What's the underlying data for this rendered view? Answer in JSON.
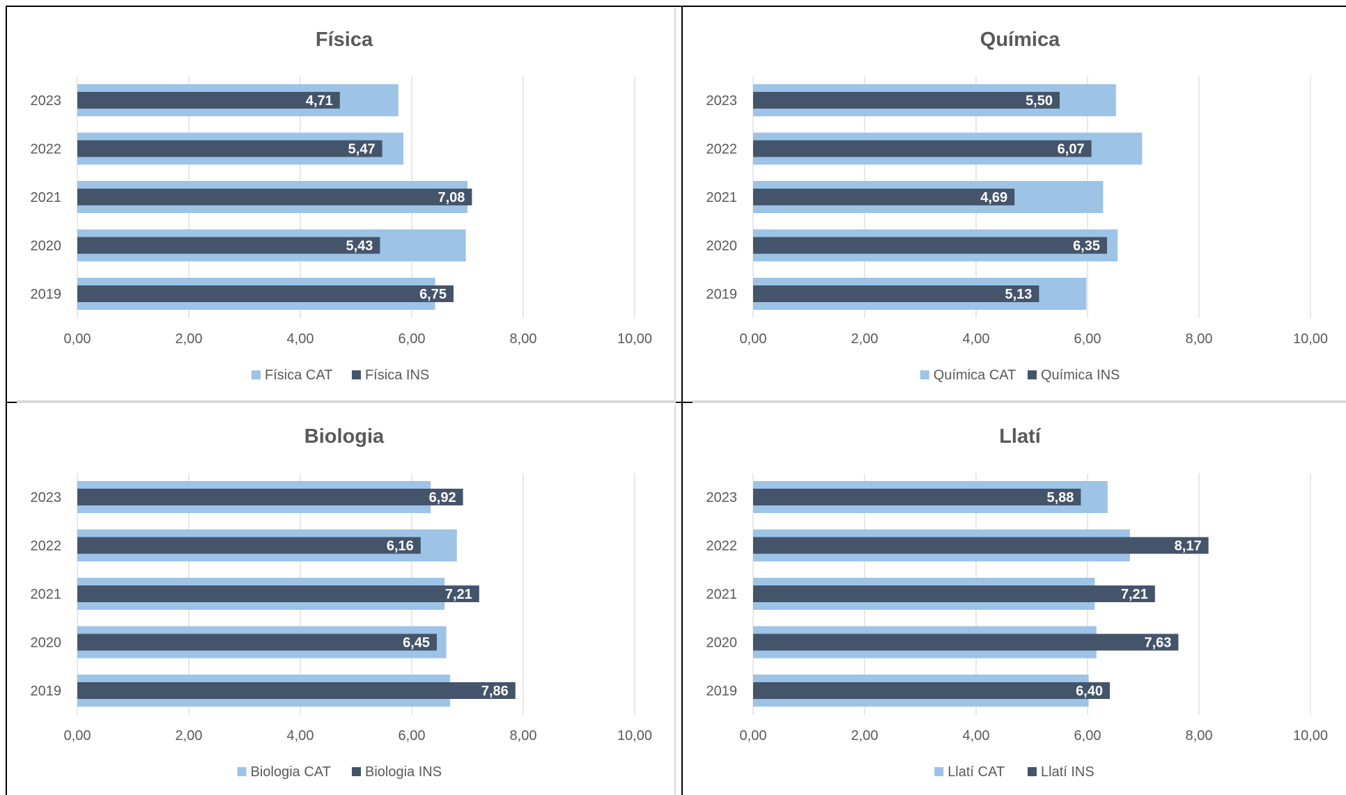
{
  "colors": {
    "cat": "#9DC3E6",
    "ins": "#44546A",
    "grid": "#D9D9D9",
    "text": "#595959",
    "label": "#ffffff"
  },
  "chart_data": [
    {
      "type": "bar",
      "orientation": "horizontal",
      "title": "Física",
      "categories": [
        "2023",
        "2022",
        "2021",
        "2020",
        "2019"
      ],
      "xlim": [
        0,
        10
      ],
      "xticks": [
        "0,00",
        "2,00",
        "4,00",
        "6,00",
        "8,00",
        "10,00"
      ],
      "grid": true,
      "legend_position": "bottom",
      "series": [
        {
          "name": "Física CAT",
          "values": [
            5.76,
            5.85,
            7.0,
            6.97,
            6.42
          ]
        },
        {
          "name": "Física INS",
          "values": [
            4.71,
            5.47,
            7.08,
            5.43,
            6.75
          ],
          "labels": [
            "4,71",
            "5,47",
            "7,08",
            "5,43",
            "6,75"
          ]
        }
      ]
    },
    {
      "type": "bar",
      "orientation": "horizontal",
      "title": "Química",
      "categories": [
        "2023",
        "2022",
        "2021",
        "2020",
        "2019"
      ],
      "xlim": [
        0,
        10
      ],
      "xticks": [
        "0,00",
        "2,00",
        "4,00",
        "6,00",
        "8,00",
        "10,00"
      ],
      "grid": true,
      "legend_position": "bottom",
      "series": [
        {
          "name": "Química CAT",
          "values": [
            6.51,
            6.98,
            6.28,
            6.54,
            5.98
          ]
        },
        {
          "name": "Química INS",
          "values": [
            5.5,
            6.07,
            4.69,
            6.35,
            5.13
          ],
          "labels": [
            "5,50",
            "6,07",
            "4,69",
            "6,35",
            "5,13"
          ]
        }
      ]
    },
    {
      "type": "bar",
      "orientation": "horizontal",
      "title": "Biologia",
      "categories": [
        "2023",
        "2022",
        "2021",
        "2020",
        "2019"
      ],
      "xlim": [
        0,
        10
      ],
      "xticks": [
        "0,00",
        "2,00",
        "4,00",
        "6,00",
        "8,00",
        "10,00"
      ],
      "grid": true,
      "legend_position": "bottom",
      "series": [
        {
          "name": "Biologia CAT",
          "values": [
            6.34,
            6.81,
            6.59,
            6.62,
            6.69
          ]
        },
        {
          "name": "Biologia INS",
          "values": [
            6.92,
            6.16,
            7.21,
            6.45,
            7.86
          ],
          "labels": [
            "6,92",
            "6,16",
            "7,21",
            "6,45",
            "7,86"
          ]
        }
      ]
    },
    {
      "type": "bar",
      "orientation": "horizontal",
      "title": "Llatí",
      "categories": [
        "2023",
        "2022",
        "2021",
        "2020",
        "2019"
      ],
      "xlim": [
        0,
        10
      ],
      "xticks": [
        "0,00",
        "2,00",
        "4,00",
        "6,00",
        "8,00",
        "10,00"
      ],
      "grid": true,
      "legend_position": "bottom",
      "series": [
        {
          "name": "Llatí CAT",
          "values": [
            6.36,
            6.76,
            6.13,
            6.16,
            6.02
          ]
        },
        {
          "name": "Llatí INS",
          "values": [
            5.88,
            8.17,
            7.21,
            7.63,
            6.4
          ],
          "labels": [
            "5,88",
            "8,17",
            "7,21",
            "7,63",
            "6,40"
          ]
        }
      ]
    }
  ]
}
